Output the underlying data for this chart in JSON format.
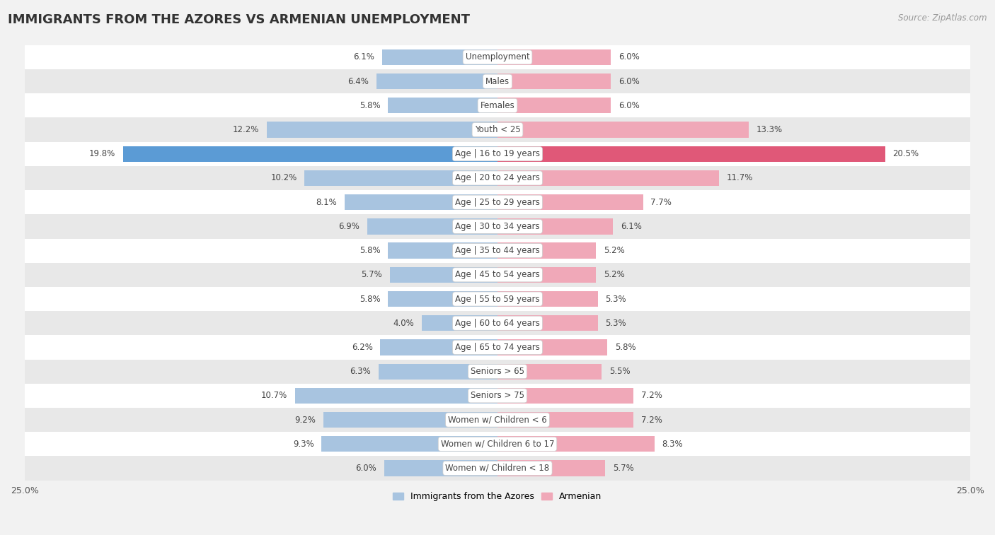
{
  "title": "IMMIGRANTS FROM THE AZORES VS ARMENIAN UNEMPLOYMENT",
  "source": "Source: ZipAtlas.com",
  "categories": [
    "Unemployment",
    "Males",
    "Females",
    "Youth < 25",
    "Age | 16 to 19 years",
    "Age | 20 to 24 years",
    "Age | 25 to 29 years",
    "Age | 30 to 34 years",
    "Age | 35 to 44 years",
    "Age | 45 to 54 years",
    "Age | 55 to 59 years",
    "Age | 60 to 64 years",
    "Age | 65 to 74 years",
    "Seniors > 65",
    "Seniors > 75",
    "Women w/ Children < 6",
    "Women w/ Children 6 to 17",
    "Women w/ Children < 18"
  ],
  "azores_values": [
    6.1,
    6.4,
    5.8,
    12.2,
    19.8,
    10.2,
    8.1,
    6.9,
    5.8,
    5.7,
    5.8,
    4.0,
    6.2,
    6.3,
    10.7,
    9.2,
    9.3,
    6.0
  ],
  "armenian_values": [
    6.0,
    6.0,
    6.0,
    13.3,
    20.5,
    11.7,
    7.7,
    6.1,
    5.2,
    5.2,
    5.3,
    5.3,
    5.8,
    5.5,
    7.2,
    7.2,
    8.3,
    5.7
  ],
  "azores_color": "#a8c4e0",
  "armenian_color": "#f0a8b8",
  "azores_highlight_color": "#5b9bd5",
  "armenian_highlight_color": "#e05878",
  "highlight_row": 4,
  "xlim": 25.0,
  "background_color": "#f2f2f2",
  "row_color_even": "#ffffff",
  "row_color_odd": "#e8e8e8",
  "label_fontsize": 8.5,
  "category_fontsize": 8.5,
  "title_fontsize": 13,
  "source_fontsize": 8.5,
  "value_fontsize": 8.5
}
